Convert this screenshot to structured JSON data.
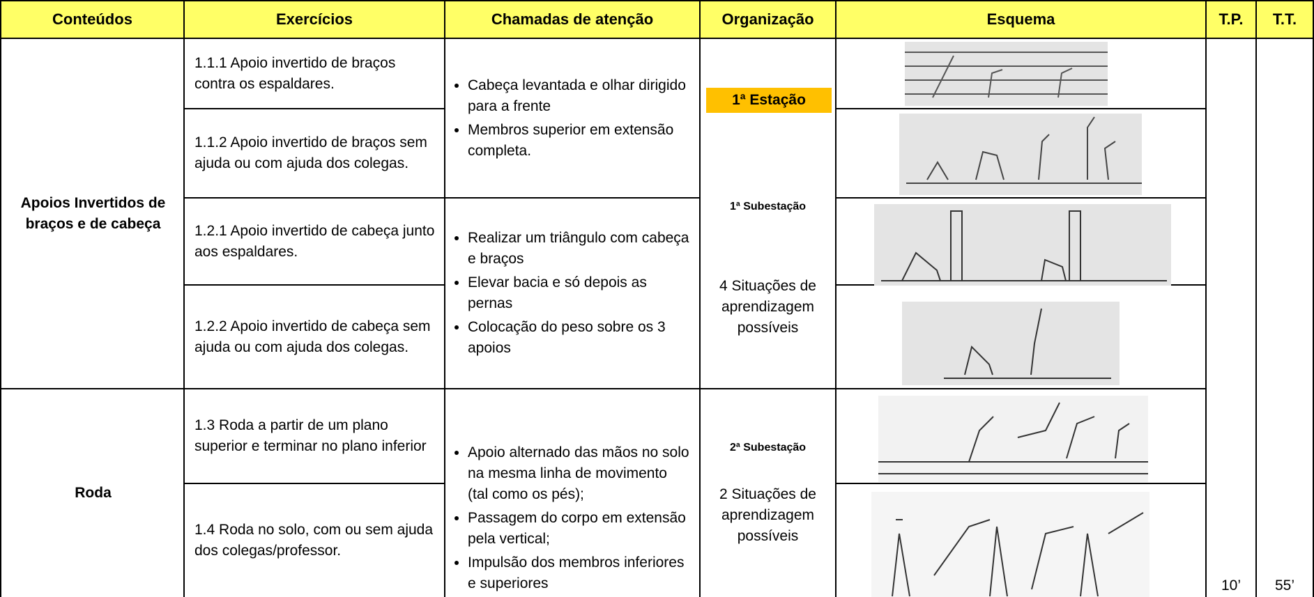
{
  "table": {
    "headers": [
      "Conteúdos",
      "Exercícios",
      "Chamadas de atenção",
      "Organização",
      "Esquema",
      "T.P.",
      "T.T."
    ],
    "contents": [
      "Apoios Invertidos de braços e de cabeça",
      "Roda"
    ],
    "exercises": [
      "1.1.1 Apoio invertido de braços contra os espaldares.",
      "1.1.2 Apoio invertido de braços sem ajuda ou com ajuda dos colegas.",
      "1.2.1 Apoio invertido de cabeça junto aos espaldares.",
      "1.2.2 Apoio invertido de cabeça sem ajuda ou com ajuda dos colegas.",
      "1.3 Roda a partir de um plano superior e terminar no plano inferior",
      "1.4 Roda no solo, com ou sem ajuda dos colegas/professor."
    ],
    "attention": [
      [
        "Cabeça levantada e olhar dirigido para a frente",
        "Membros superior em extensão completa."
      ],
      [
        "Realizar um triângulo com cabeça e braços",
        "Elevar bacia e só depois as pernas",
        "Colocação do peso sobre os 3 apoios"
      ],
      [
        "Apoio alternado das mãos no solo na mesma linha de movimento (tal como os pés);",
        "Passagem do corpo em extensão pela vertical;",
        "Impulsão dos membros inferiores e superiores"
      ]
    ],
    "organization": {
      "station": "1ª Estação",
      "substations": [
        {
          "title": "1ª Subestação",
          "text": "4 Situações de aprendizagem possíveis"
        },
        {
          "title": "2ª Subestação",
          "text": "2 Situações de aprendizagem possíveis"
        }
      ]
    },
    "tp": "10’",
    "tt": "55’"
  }
}
